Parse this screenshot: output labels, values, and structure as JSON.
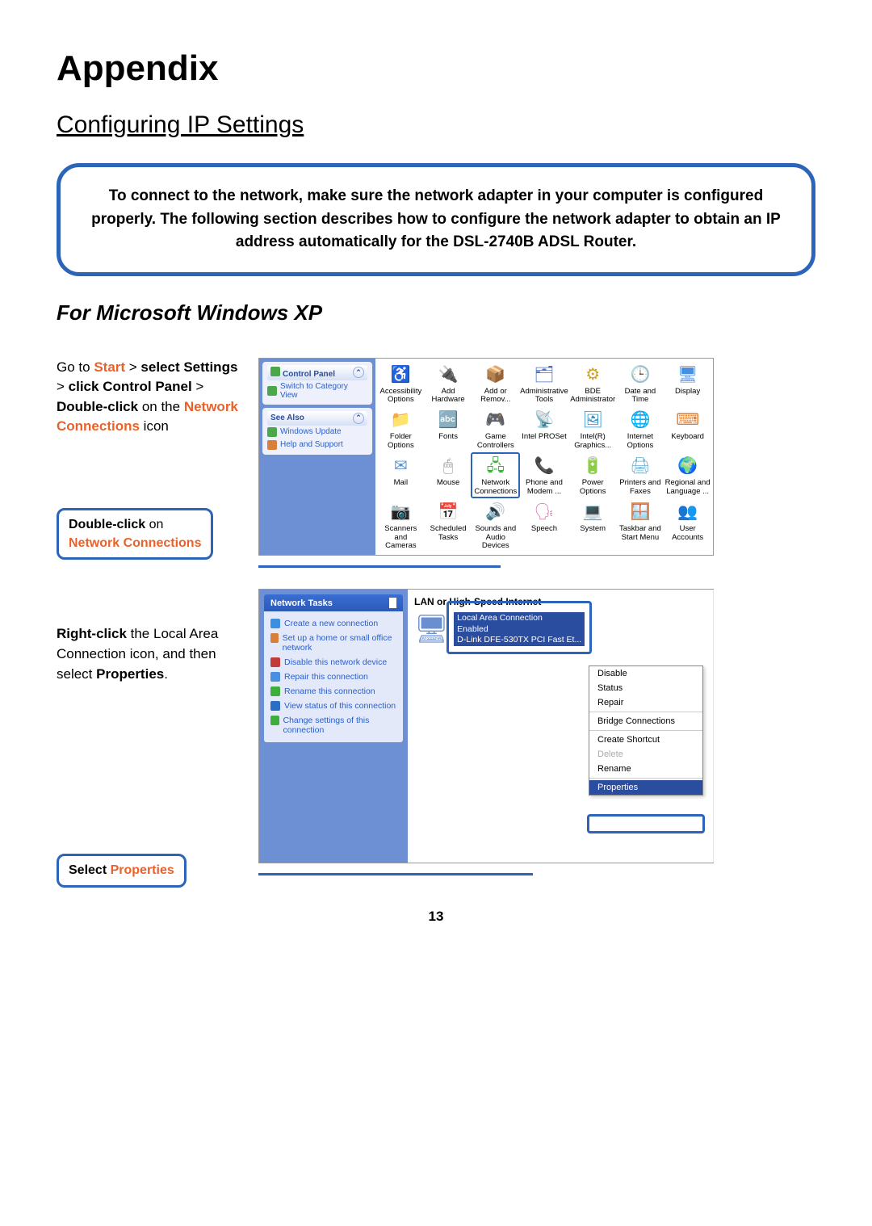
{
  "title": "Appendix",
  "section": "Configuring IP Settings",
  "info_box": "To connect to the network, make sure the network adapter in your computer is configured properly. The following section describes how to configure the network adapter to obtain an IP address automatically for the DSL-2740B ADSL Router.",
  "subsection": "For Microsoft Windows XP",
  "step1": {
    "t1": "Go to ",
    "start": "Start",
    "t2": " > ",
    "select": "select Settings",
    "t3": " > ",
    "click": "click Control Panel",
    "t4": " > ",
    "dbl": "Double-click",
    "t5": " on the ",
    "nc": "Network Connections",
    "t6": " icon"
  },
  "callout1": {
    "a": "Double-click",
    "b": " on ",
    "c": "Network Connections"
  },
  "step2": {
    "a": "Right-click",
    "b": " the Local Area Connection icon, and then select ",
    "c": "Properties",
    "d": "."
  },
  "callout2": {
    "a": "Select ",
    "b": "Properties"
  },
  "cp": {
    "hd": "Control Panel",
    "switch": "Switch to Category View",
    "see": "See Also",
    "wu": "Windows Update",
    "hs": "Help and Support",
    "items": [
      {
        "l": "Accessibility Options",
        "c": "#3cae3c",
        "g": "♿"
      },
      {
        "l": "Add Hardware",
        "c": "#2b8a2b",
        "g": "🔌"
      },
      {
        "l": "Add or Remov...",
        "c": "#d8a23b",
        "g": "📦"
      },
      {
        "l": "Administrative Tools",
        "c": "#4b6fc4",
        "g": "🗂"
      },
      {
        "l": "BDE Administrator",
        "c": "#d0a020",
        "g": "⚙"
      },
      {
        "l": "Date and Time",
        "c": "#7bb44c",
        "g": "🕒"
      },
      {
        "l": "Display",
        "c": "#4b8fe0",
        "g": "🖥"
      },
      {
        "l": "Folder Options",
        "c": "#4aa84a",
        "g": "📁"
      },
      {
        "l": "Fonts",
        "c": "#3c8fe0",
        "g": "🔤"
      },
      {
        "l": "Game Controllers",
        "c": "#d86fb0",
        "g": "🎮"
      },
      {
        "l": "Intel PROSet",
        "c": "#2b6fc4",
        "g": "📡"
      },
      {
        "l": "Intel(R) Graphics...",
        "c": "#2b8fd0",
        "g": "🖼"
      },
      {
        "l": "Internet Options",
        "c": "#3c8fe0",
        "g": "🌐"
      },
      {
        "l": "Keyboard",
        "c": "#d87f3c",
        "g": "⌨"
      },
      {
        "l": "Mail",
        "c": "#5b8fd0",
        "g": "✉"
      },
      {
        "l": "Mouse",
        "c": "#888",
        "g": "🖱"
      },
      {
        "l": "Network Connections",
        "c": "#3cae3c",
        "g": "🖧",
        "sel": true
      },
      {
        "l": "Phone and Modem ...",
        "c": "#c09030",
        "g": "📞"
      },
      {
        "l": "Power Options",
        "c": "#3c8fe0",
        "g": "🔋"
      },
      {
        "l": "Printers and Faxes",
        "c": "#6faed0",
        "g": "🖨"
      },
      {
        "l": "Regional and Language ...",
        "c": "#3c8fe0",
        "g": "🌍"
      },
      {
        "l": "Scanners and Cameras",
        "c": "#4b8fe0",
        "g": "📷"
      },
      {
        "l": "Scheduled Tasks",
        "c": "#d8a23b",
        "g": "📅"
      },
      {
        "l": "Sounds and Audio Devices",
        "c": "#4b8fe0",
        "g": "🔊"
      },
      {
        "l": "Speech",
        "c": "#d86fb0",
        "g": "🗣"
      },
      {
        "l": "System",
        "c": "#4b6fc4",
        "g": "💻"
      },
      {
        "l": "Taskbar and Start Menu",
        "c": "#4b8fe0",
        "g": "🪟"
      },
      {
        "l": "User Accounts",
        "c": "#d8603c",
        "g": "👥"
      }
    ]
  },
  "nc": {
    "hd": "Network Tasks",
    "links": [
      "Create a new connection",
      "Set up a home or small office network",
      "Disable this network device",
      "Repair this connection",
      "Rename this connection",
      "View status of this connection",
      "Change settings of this connection"
    ],
    "section": "LAN or High-Speed Internet",
    "conn": {
      "name": "Local Area Connection",
      "status": "Enabled",
      "dev": "D-Link DFE-530TX PCI Fast Et..."
    },
    "menu": [
      "Disable",
      "Status",
      "Repair",
      "",
      "Bridge Connections",
      "",
      "Create Shortcut",
      "Delete",
      "Rename",
      "",
      "Properties"
    ]
  },
  "page_num": "13",
  "colors": {
    "border": "#2b64b8",
    "highlight": "#e9622b"
  }
}
